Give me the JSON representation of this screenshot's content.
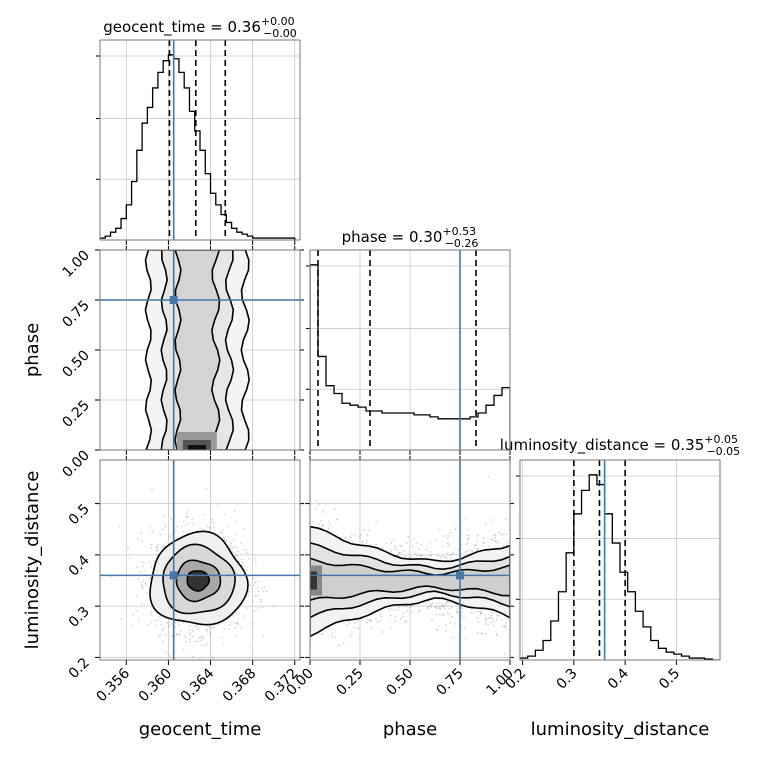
{
  "chart_data": {
    "type": "corner",
    "grid": true,
    "parameters": [
      {
        "name": "geocent_time",
        "label": "geocent_time",
        "range": [
          0.3535,
          0.3725
        ],
        "ticks": [
          0.356,
          0.36,
          0.364,
          0.368,
          0.372
        ],
        "tick_labels": [
          "0.356",
          "0.360",
          "0.364",
          "0.368",
          "0.372"
        ],
        "truth": 0.3605,
        "quantiles": [
          0.3601,
          0.3626,
          0.3654
        ],
        "title": {
          "prefix": "geocent_time = 0.36",
          "sup": "+0.00",
          "sub": "−0.00"
        },
        "histogram": {
          "bin_edges": [
            0.3535,
            0.354,
            0.3545,
            0.355,
            0.3555,
            0.356,
            0.3565,
            0.357,
            0.3575,
            0.358,
            0.3585,
            0.359,
            0.3595,
            0.36,
            0.3605,
            0.361,
            0.3615,
            0.362,
            0.3625,
            0.363,
            0.3635,
            0.364,
            0.3645,
            0.365,
            0.3655,
            0.366,
            0.3665,
            0.367,
            0.3675,
            0.368,
            0.3685,
            0.369,
            0.3695,
            0.37,
            0.3705,
            0.371,
            0.3715,
            0.372
          ],
          "counts": [
            1,
            2,
            4,
            6,
            11,
            18,
            30,
            46,
            60,
            68,
            78,
            86,
            92,
            95,
            93,
            86,
            78,
            66,
            56,
            46,
            34,
            24,
            18,
            13,
            9,
            6,
            4,
            3,
            2,
            1,
            1,
            1,
            1,
            1,
            1,
            1,
            1
          ]
        }
      },
      {
        "name": "phase",
        "label": "phase",
        "range": [
          0.0,
          1.0
        ],
        "ticks": [
          0.0,
          0.25,
          0.5,
          0.75,
          1.0
        ],
        "tick_labels": [
          "0.00",
          "0.25",
          "0.50",
          "0.75",
          "1.00"
        ],
        "truth": 0.75,
        "quantiles": [
          0.04,
          0.3,
          0.83
        ],
        "title": {
          "prefix": "phase = 0.30",
          "sup": "+0.53",
          "sub": "−0.26"
        },
        "histogram": {
          "bin_edges": [
            0.0,
            0.04,
            0.08,
            0.12,
            0.16,
            0.2,
            0.24,
            0.28,
            0.32,
            0.36,
            0.4,
            0.44,
            0.48,
            0.52,
            0.56,
            0.6,
            0.64,
            0.68,
            0.72,
            0.76,
            0.8,
            0.84,
            0.88,
            0.92,
            0.96,
            1.0
          ],
          "counts": [
            95,
            48,
            33,
            29,
            24,
            23,
            22,
            20,
            20,
            19,
            19,
            19,
            19,
            18,
            18,
            17,
            16,
            16,
            16,
            16,
            17,
            19,
            23,
            28,
            32
          ]
        }
      },
      {
        "name": "luminosity_distance",
        "label": "luminosity_distance",
        "range": [
          0.195,
          0.585
        ],
        "ticks": [
          0.2,
          0.3,
          0.4,
          0.5
        ],
        "tick_labels": [
          "0.2",
          "0.3",
          "0.4",
          "0.5"
        ],
        "truth": 0.36,
        "quantiles": [
          0.3,
          0.35,
          0.4
        ],
        "title": {
          "prefix": "luminosity_distance = 0.35",
          "sup": "+0.05",
          "sub": "−0.05"
        },
        "histogram": {
          "bin_edges": [
            0.195,
            0.21,
            0.225,
            0.24,
            0.255,
            0.27,
            0.285,
            0.3,
            0.315,
            0.33,
            0.345,
            0.36,
            0.375,
            0.39,
            0.405,
            0.42,
            0.435,
            0.45,
            0.465,
            0.48,
            0.495,
            0.51,
            0.525,
            0.54,
            0.555,
            0.57,
            0.585
          ],
          "counts": [
            1,
            2,
            5,
            10,
            20,
            35,
            55,
            75,
            87,
            95,
            90,
            75,
            60,
            45,
            35,
            25,
            17,
            10,
            6,
            4,
            3,
            2,
            1,
            1,
            0.5,
            0
          ]
        }
      }
    ],
    "y_axis_ticks": {
      "phase": [
        "1.00",
        "0.75",
        "0.50",
        "0.25",
        "0.00"
      ],
      "luminosity_distance": [
        "0.5",
        "0.4",
        "0.3",
        "0.2"
      ]
    },
    "pair_densities": [
      {
        "x": "geocent_time",
        "y": "phase",
        "center": [
          0.3626,
          0.42
        ],
        "description": "narrow vertical band around geocent_time 0.3625, densest near phase 0"
      },
      {
        "x": "geocent_time",
        "y": "luminosity_distance",
        "center": [
          0.3628,
          0.35
        ]
      },
      {
        "x": "phase",
        "y": "luminosity_distance",
        "center": [
          0.5,
          0.35
        ]
      }
    ],
    "truth_markers": [
      {
        "x": "geocent_time",
        "y": "phase",
        "point": [
          0.3605,
          0.75
        ]
      },
      {
        "x": "geocent_time",
        "y": "luminosity_distance",
        "point": [
          0.3605,
          0.36
        ]
      },
      {
        "x": "phase",
        "y": "luminosity_distance",
        "point": [
          0.75,
          0.36
        ]
      }
    ],
    "colors": {
      "truth": "#4477aa",
      "contour": "#000000",
      "frame": "#7a7a7a",
      "grid": "#c8c8c8"
    }
  }
}
